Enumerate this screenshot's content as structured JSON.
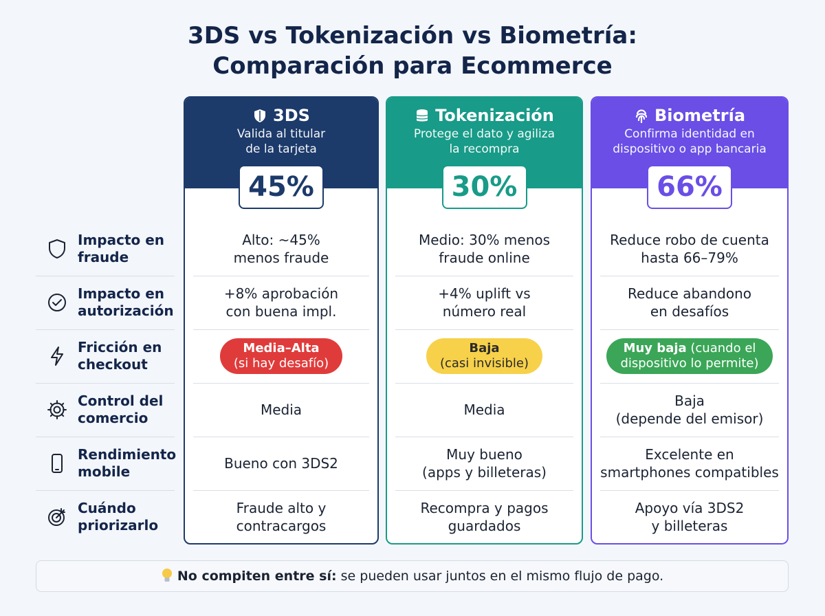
{
  "title": [
    "3DS vs Tokenización vs Biometría:",
    "Comparación para Ecommerce"
  ],
  "columns": [
    {
      "name": "3DS",
      "subtitle": [
        "Valida al titular",
        "de la tarjeta"
      ],
      "stat": "45%",
      "color": "#1c3a6a"
    },
    {
      "name": "Tokenización",
      "subtitle": [
        "Protege el dato y agiliza",
        "la recompra"
      ],
      "stat": "30%",
      "color": "#189b88"
    },
    {
      "name": "Biometría",
      "subtitle": [
        "Confirma identidad en",
        "dispositivo o app bancaria"
      ],
      "stat": "66%",
      "color": "#6a4ee6"
    }
  ],
  "rows": [
    {
      "label": [
        "Impacto en",
        "fraude"
      ],
      "cells": [
        [
          "Alto: ~45%",
          "menos fraude"
        ],
        [
          "Medio: 30% menos",
          "fraude online"
        ],
        [
          "Reduce robo de cuenta",
          "hasta 66–79%"
        ]
      ]
    },
    {
      "label": [
        "Impacto en",
        "autorización"
      ],
      "cells": [
        [
          "+8% aprobación",
          "con buena impl."
        ],
        [
          "+4% uplift vs",
          "número real"
        ],
        [
          "Reduce abandono",
          "en desafíos"
        ]
      ]
    },
    {
      "label": [
        "Fricción en",
        "checkout"
      ],
      "pills": [
        {
          "strong": "Media–Alta",
          "text": [
            "(si hay desafío)"
          ],
          "color": "#e03b3b"
        },
        {
          "strong": "Baja",
          "text": [
            "(casi invisible)"
          ],
          "color": "#f7d14a"
        },
        {
          "strong": "Muy baja",
          "text": [
            "(cuando el",
            "dispositivo lo permite)"
          ],
          "color": "#3ba657"
        }
      ]
    },
    {
      "label": [
        "Control del",
        "comercio"
      ],
      "cells": [
        [
          "Media"
        ],
        [
          "Media"
        ],
        [
          "Baja",
          "(depende del emisor)"
        ]
      ]
    },
    {
      "label": [
        "Rendimiento",
        "mobile"
      ],
      "cells": [
        [
          "Bueno con 3DS2"
        ],
        [
          "Muy bueno",
          "(apps y billeteras)"
        ],
        [
          "Excelente en",
          "smartphones compatibles"
        ]
      ]
    },
    {
      "label": [
        "Cuándo",
        "priorizarlo"
      ],
      "cells": [
        [
          "Fraude alto y",
          "contracargos"
        ],
        [
          "Recompra y pagos",
          "guardados"
        ],
        [
          "Apoyo vía 3DS2",
          "y billeteras"
        ]
      ]
    }
  ],
  "footer": {
    "strong": "No compiten entre sí:",
    "text": "se pueden usar juntos en el mismo flujo de pago."
  }
}
